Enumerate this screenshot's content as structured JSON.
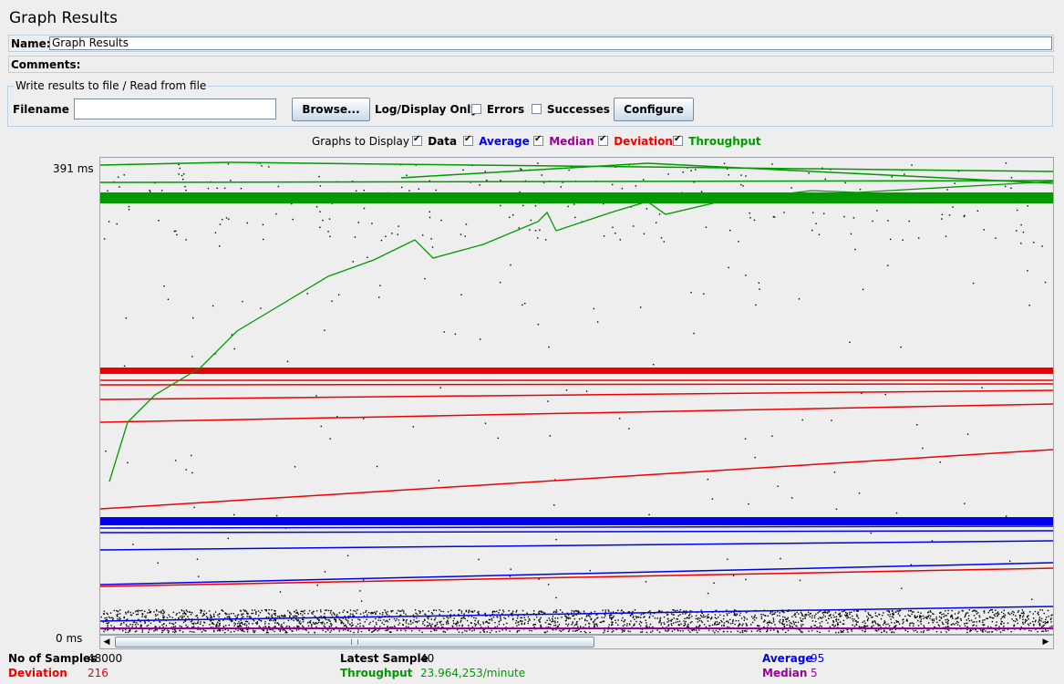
{
  "window": {
    "title": "Graph Results"
  },
  "form": {
    "name_label": "Name:",
    "name_value": "Graph Results",
    "comments_label": "Comments:"
  },
  "file_group": {
    "title": "Write results to file / Read from file",
    "filename_label": "Filename",
    "filename_value": "",
    "browse_label": "Browse...",
    "log_display_label": "Log/Display Only:",
    "errors_label": "Errors",
    "errors_checked": false,
    "successes_label": "Successes",
    "successes_checked": false,
    "configure_label": "Configure"
  },
  "graphs_to_display": {
    "label": "Graphs to Display",
    "items": [
      {
        "label": "Data",
        "checked": true,
        "color": "#000000"
      },
      {
        "label": "Average",
        "checked": true,
        "color": "#0000ee"
      },
      {
        "label": "Median",
        "checked": true,
        "color": "#990099"
      },
      {
        "label": "Deviation",
        "checked": true,
        "color": "#ee0000"
      },
      {
        "label": "Throughput",
        "checked": true,
        "color": "#009900"
      }
    ]
  },
  "graph": {
    "y_max_label": "391  ms",
    "y_min_label": "0  ms"
  },
  "stats": {
    "samples_label": "No of Samples",
    "samples_value": "48000",
    "latest_label": "Latest Sample",
    "latest_value": "40",
    "average_label": "Average",
    "average_value": "95",
    "deviation_label": "Deviation",
    "deviation_value": "216",
    "throughput_label": "Throughput",
    "throughput_value": "23.964,253/minute",
    "median_label": "Median",
    "median_value": "5"
  },
  "colors": {
    "data": "#000000",
    "average": "#0000ee",
    "median": "#990099",
    "deviation": "#ee0000",
    "throughput": "#009900",
    "panel_bg": "#eeeeee"
  }
}
